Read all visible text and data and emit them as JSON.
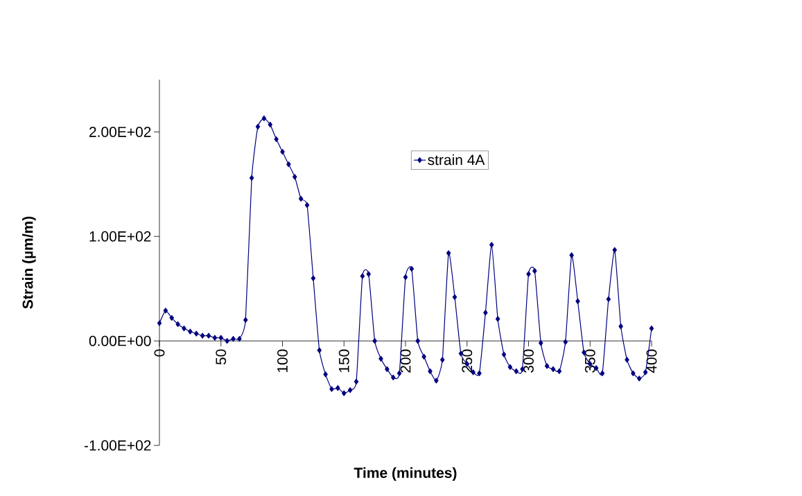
{
  "chart_data": {
    "type": "line",
    "xlabel": "Time (minutes)",
    "ylabel": "Strain (µm/m)",
    "x": [
      0,
      5,
      10,
      15,
      20,
      25,
      30,
      35,
      40,
      45,
      50,
      55,
      60,
      65,
      70,
      75,
      80,
      85,
      90,
      95,
      100,
      105,
      110,
      115,
      120,
      125,
      130,
      135,
      140,
      145,
      150,
      155,
      160,
      165,
      170,
      175,
      180,
      185,
      190,
      195,
      200,
      205,
      210,
      215,
      220,
      225,
      230,
      235,
      240,
      245,
      250,
      255,
      260,
      265,
      270,
      275,
      280,
      285,
      290,
      295,
      300,
      305,
      310,
      315,
      320,
      325,
      330,
      335,
      340,
      345,
      350,
      355,
      360,
      365,
      370,
      375,
      380,
      385,
      390,
      395,
      400
    ],
    "series": [
      {
        "name": "strain 4A",
        "color": "#000080",
        "values": [
          17,
          29,
          22,
          16,
          12,
          9,
          7,
          5,
          5,
          3,
          3,
          0,
          2,
          2,
          20,
          156,
          205,
          213,
          207,
          193,
          181,
          169,
          157,
          136,
          130,
          60,
          -9,
          -32,
          -46,
          -45,
          -50,
          -47,
          -39,
          62,
          64,
          0,
          -17,
          -27,
          -35,
          -31,
          61,
          69,
          0,
          -15,
          -29,
          -38,
          -18,
          84,
          42,
          -12,
          -22,
          -30,
          -31,
          27,
          92,
          21,
          -13,
          -25,
          -29,
          -27,
          64,
          67,
          -2,
          -24,
          -27,
          -29,
          -1,
          82,
          38,
          -11,
          -22,
          -26,
          -31,
          40,
          87,
          14,
          -18,
          -31,
          -36,
          -30,
          12
        ]
      }
    ],
    "xlim": [
      0,
      400
    ],
    "xticks": [
      0,
      50,
      100,
      150,
      200,
      250,
      300,
      350,
      400
    ],
    "ylim": [
      -100,
      250
    ],
    "yticks": [
      {
        "value": -100,
        "label": "-1.00E+02"
      },
      {
        "value": 0,
        "label": "0.00E+00"
      },
      {
        "value": 100,
        "label": "1.00E+02"
      },
      {
        "value": 200,
        "label": "2.00E+02"
      }
    ],
    "grid": false,
    "legend": "top",
    "marker": "diamond",
    "line_style": "solid"
  }
}
